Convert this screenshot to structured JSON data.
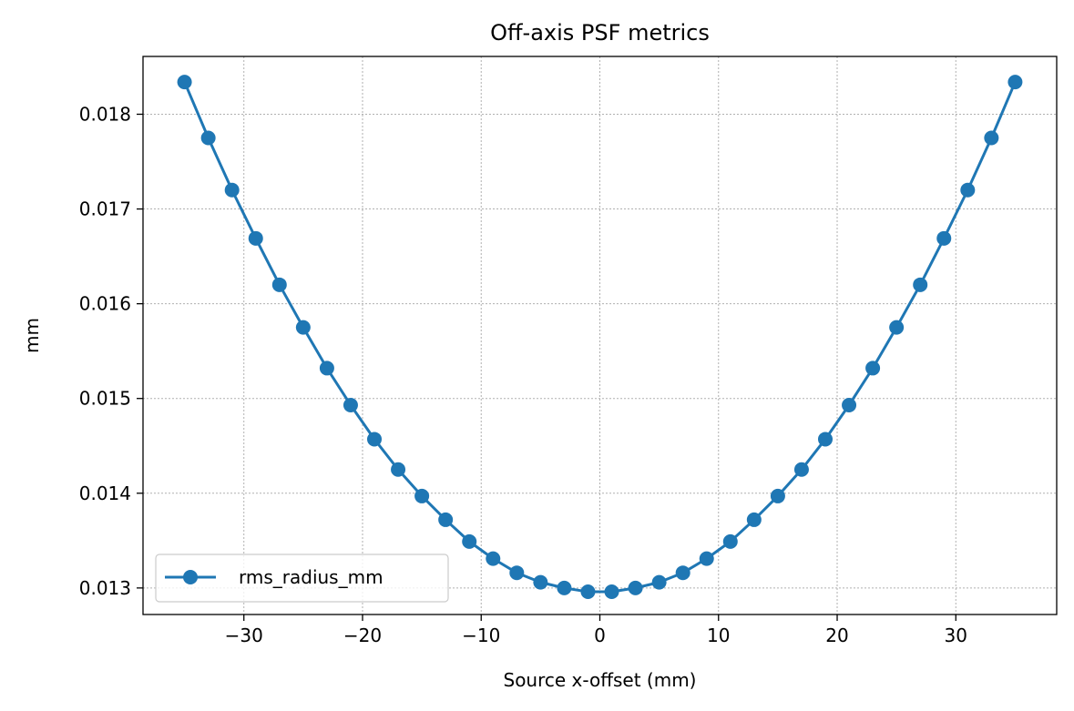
{
  "chart_data": {
    "type": "line",
    "title": "Off-axis PSF metrics",
    "xlabel": "Source x-offset (mm)",
    "ylabel": "mm",
    "xlim": [
      -38.5,
      38.5
    ],
    "ylim": [
      0.01272,
      0.01861
    ],
    "xticks": [
      -30,
      -20,
      -10,
      0,
      10,
      20,
      30
    ],
    "xtick_labels": [
      "−30",
      "−20",
      "−10",
      "0",
      "10",
      "20",
      "30"
    ],
    "yticks": [
      0.013,
      0.014,
      0.015,
      0.016,
      0.017,
      0.018
    ],
    "ytick_labels": [
      "0.013",
      "0.014",
      "0.015",
      "0.016",
      "0.017",
      "0.018"
    ],
    "grid": true,
    "legend": "lower-left",
    "color": "#1f77b4",
    "x": [
      -35,
      -33,
      -31,
      -29,
      -27,
      -25,
      -23,
      -21,
      -19,
      -17,
      -15,
      -13,
      -11,
      -9,
      -7,
      -5,
      -3,
      -1,
      1,
      3,
      5,
      7,
      9,
      11,
      13,
      15,
      17,
      19,
      21,
      23,
      25,
      27,
      29,
      31,
      33,
      35
    ],
    "series": [
      {
        "name": "rms_radius_mm",
        "values": [
          0.01834,
          0.01775,
          0.0172,
          0.01669,
          0.0162,
          0.01575,
          0.01532,
          0.01493,
          0.01457,
          0.01425,
          0.01397,
          0.01372,
          0.01349,
          0.01331,
          0.01316,
          0.01306,
          0.013,
          0.01296,
          0.01296,
          0.013,
          0.01306,
          0.01316,
          0.01331,
          0.01349,
          0.01372,
          0.01397,
          0.01425,
          0.01457,
          0.01493,
          0.01532,
          0.01575,
          0.0162,
          0.01669,
          0.0172,
          0.01775,
          0.01834
        ]
      }
    ]
  }
}
